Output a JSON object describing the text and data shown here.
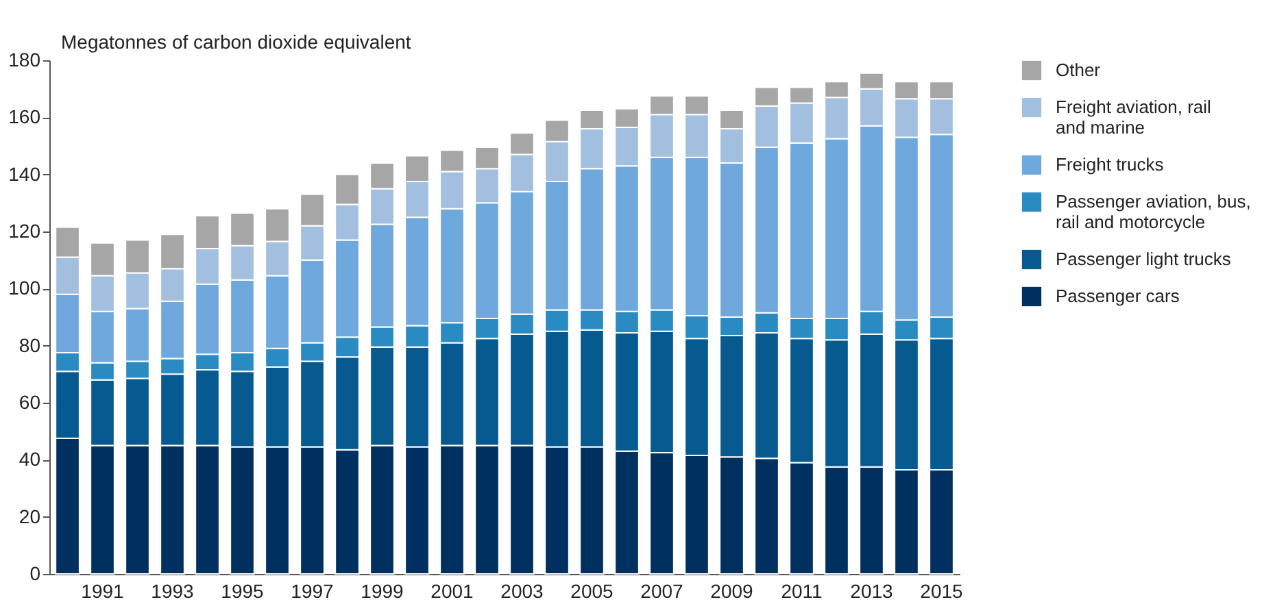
{
  "chart_data": {
    "type": "bar",
    "stacked": true,
    "ylabel": "Megatonnes of carbon dioxide equivalent",
    "categories": [
      null,
      "1991",
      null,
      "1993",
      null,
      "1995",
      null,
      "1997",
      null,
      "1999",
      null,
      "2001",
      null,
      "2003",
      null,
      "2005",
      null,
      "2007",
      null,
      "2009",
      null,
      "2011",
      null,
      "2013",
      null,
      "2015"
    ],
    "ylim": [
      0,
      180
    ],
    "yticks": [
      0,
      20,
      40,
      60,
      80,
      100,
      120,
      140,
      160,
      180
    ],
    "grid": false,
    "legend": "right",
    "series": [
      {
        "name": "Passenger cars",
        "color": "#00305f",
        "values": [
          47.5,
          45,
          45,
          45,
          45,
          44.5,
          44.5,
          44.5,
          43.5,
          45,
          44.5,
          45,
          45,
          45,
          44.5,
          44.5,
          43,
          42.5,
          41.5,
          41,
          40.5,
          39,
          37.5,
          37.5,
          36.5,
          36.5
        ]
      },
      {
        "name": "Passenger light trucks",
        "color": "#065a8f",
        "values": [
          23.5,
          23,
          23.5,
          25,
          26.5,
          26.5,
          28,
          30,
          32.5,
          34.5,
          35,
          36,
          37.5,
          39,
          40.5,
          41,
          41.5,
          42.5,
          41,
          42.5,
          44,
          43.5,
          44.5,
          46.5,
          45.5,
          46
        ]
      },
      {
        "name": "Passenger aviation, bus, rail and motorcycle",
        "color": "#2a8bc2",
        "values": [
          6.5,
          6,
          6,
          5.5,
          5.5,
          6.5,
          6.5,
          6.5,
          7,
          7,
          7.5,
          7,
          7,
          7,
          7.5,
          7,
          7.5,
          7.5,
          8,
          6.5,
          7,
          7,
          7.5,
          8,
          7,
          7.5
        ]
      },
      {
        "name": "Freight trucks",
        "color": "#6fa8dc",
        "values": [
          20.5,
          18,
          18.5,
          20,
          24.5,
          25.5,
          25.5,
          29,
          34,
          36,
          38,
          40,
          40.5,
          43,
          45,
          49.5,
          51,
          53.5,
          55.5,
          54,
          58,
          61.5,
          63,
          65,
          64,
          64
        ]
      },
      {
        "name": "Freight aviation, rail and marine",
        "color": "#a3bfe0",
        "values": [
          13,
          12.5,
          12.5,
          11.5,
          12.5,
          12,
          12,
          12,
          12.5,
          12.5,
          12.5,
          13,
          12,
          13,
          14,
          14,
          13.5,
          15,
          15,
          12,
          14.5,
          14,
          14.5,
          13,
          13.5,
          12.5
        ]
      },
      {
        "name": "Other",
        "color": "#a6a6a6",
        "values": [
          10.5,
          11.5,
          11.5,
          12,
          11.5,
          11.5,
          11.5,
          11,
          10.5,
          9,
          9,
          7.5,
          7.5,
          7.5,
          7.5,
          6.5,
          6.5,
          6.5,
          6.5,
          6.5,
          6.5,
          5.5,
          5.5,
          5.5,
          6,
          6
        ]
      }
    ]
  }
}
